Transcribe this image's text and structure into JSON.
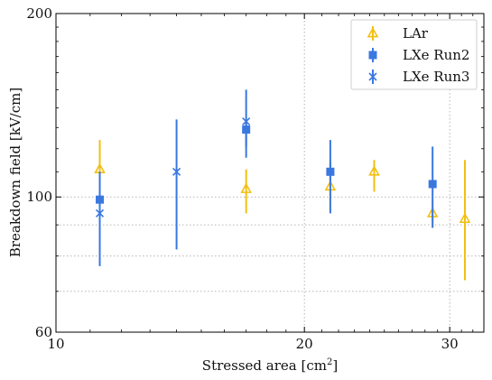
{
  "chart_data": {
    "type": "scatter",
    "xlabel": "Stressed area [cm",
    "xlabel_sup": "2",
    "xlabel_end": "]",
    "ylabel": "Breakdown field [kV/cm]",
    "xscale": "log",
    "yscale": "log",
    "xlim": [
      10,
      33
    ],
    "ylim": [
      60,
      200
    ],
    "x_ticks": [
      10,
      20,
      30
    ],
    "y_ticks": [
      60,
      100,
      200
    ],
    "x_tick_labels": [
      "10",
      "20",
      "30"
    ],
    "y_tick_labels": [
      "60",
      "100",
      "200"
    ],
    "y_minor_grid": [
      70,
      80,
      90
    ],
    "grid": "dotted at labeled ticks",
    "legend_position": "top-right",
    "series": [
      {
        "name": "LAr",
        "color": "#f2c012",
        "marker": "triangle-up-open",
        "points": [
          {
            "x": 11.3,
            "y": 111,
            "ylo": 99,
            "yhi": 124
          },
          {
            "x": 17.0,
            "y": 103,
            "ylo": 94,
            "yhi": 111
          },
          {
            "x": 21.5,
            "y": 104,
            "ylo": 95,
            "yhi": 115
          },
          {
            "x": 24.3,
            "y": 110,
            "ylo": 102,
            "yhi": 115
          },
          {
            "x": 28.6,
            "y": 94,
            "ylo": 89,
            "yhi": 99
          },
          {
            "x": 31.3,
            "y": 92,
            "ylo": 73,
            "yhi": 115
          }
        ]
      },
      {
        "name": "LXe Run2",
        "color": "#3a78e0",
        "marker": "square",
        "points": [
          {
            "x": 11.3,
            "y": 99,
            "ylo": 96,
            "yhi": 102
          },
          {
            "x": 17.0,
            "y": 129,
            "ylo": 121,
            "yhi": 133
          },
          {
            "x": 21.5,
            "y": 110,
            "ylo": 106,
            "yhi": 114
          },
          {
            "x": 28.6,
            "y": 105,
            "ylo": 89,
            "yhi": 121
          }
        ]
      },
      {
        "name": "LXe Run3",
        "color": "#3a78e0",
        "marker": "x",
        "points": [
          {
            "x": 11.3,
            "y": 94,
            "ylo": 77,
            "yhi": 110
          },
          {
            "x": 14.0,
            "y": 110,
            "ylo": 82,
            "yhi": 134
          },
          {
            "x": 17.0,
            "y": 133,
            "ylo": 116,
            "yhi": 150
          },
          {
            "x": 21.5,
            "y": 110,
            "ylo": 94,
            "yhi": 124
          }
        ]
      }
    ]
  }
}
